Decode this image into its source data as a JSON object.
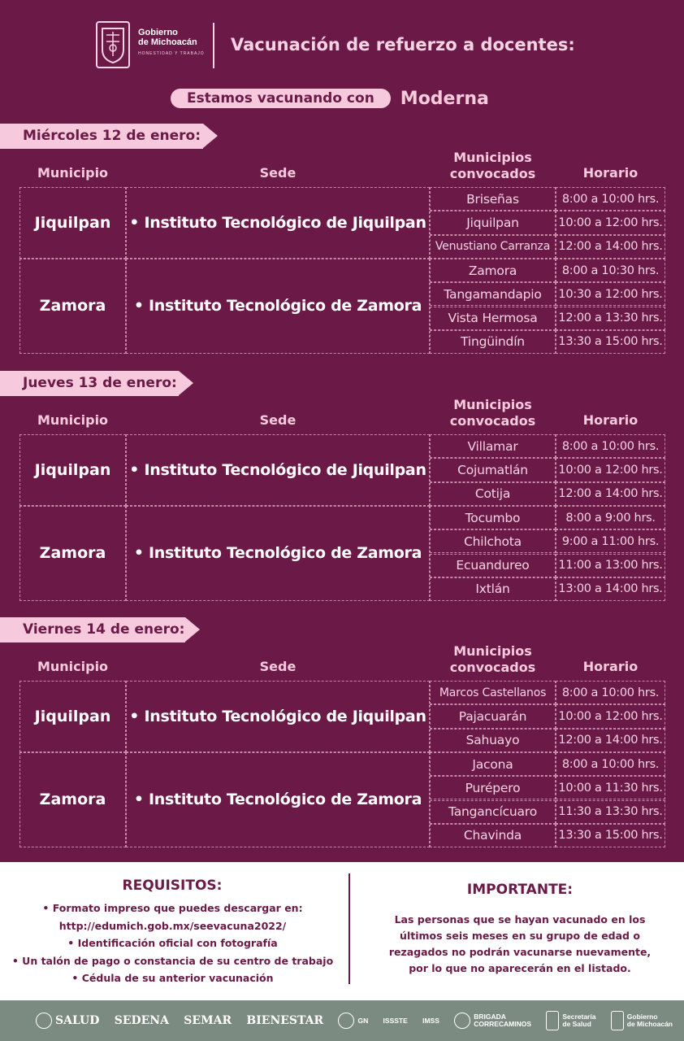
{
  "header": {
    "gov_name_1": "Gobierno",
    "gov_name_2": "de Michoacán",
    "gov_motto": "HONESTIDAD Y TRABAJO",
    "title": "Vacunación de refuerzo a docentes:"
  },
  "vaccine": {
    "label": "Estamos vacunando con",
    "name": "Moderna"
  },
  "columns": {
    "municipio": "Municipio",
    "sede": "Sede",
    "convocados_1": "Municipios",
    "convocados_2": "convocados",
    "horario": "Horario"
  },
  "days": [
    {
      "label": "Miércoles 12 de enero:",
      "groups": [
        {
          "city": "Jiquilpan",
          "sede": "• Instituto Tecnológico de Jiquilpan",
          "rows": [
            {
              "municipio": "Briseñas",
              "horario": "8:00 a 10:00 hrs."
            },
            {
              "municipio": "Jiquilpan",
              "horario": "10:00 a 12:00 hrs."
            },
            {
              "municipio": "Venustiano Carranza",
              "horario": "12:00 a 14:00 hrs."
            }
          ]
        },
        {
          "city": "Zamora",
          "sede": "• Instituto Tecnológico de Zamora",
          "rows": [
            {
              "municipio": "Zamora",
              "horario": "8:00 a 10:30 hrs."
            },
            {
              "municipio": "Tangamandapio",
              "horario": "10:30 a 12:00 hrs."
            },
            {
              "municipio": "Vista Hermosa",
              "horario": "12:00 a 13:30 hrs."
            },
            {
              "municipio": "Tingüindín",
              "horario": "13:30 a 15:00 hrs."
            }
          ]
        }
      ]
    },
    {
      "label": "Jueves 13 de enero:",
      "groups": [
        {
          "city": "Jiquilpan",
          "sede": "• Instituto Tecnológico de Jiquilpan",
          "rows": [
            {
              "municipio": "Villamar",
              "horario": "8:00 a 10:00 hrs."
            },
            {
              "municipio": "Cojumatlán",
              "horario": "10:00 a 12:00 hrs."
            },
            {
              "municipio": "Cotija",
              "horario": "12:00 a 14:00 hrs."
            }
          ]
        },
        {
          "city": "Zamora",
          "sede": "• Instituto Tecnológico de Zamora",
          "rows": [
            {
              "municipio": "Tocumbo",
              "horario": "8:00 a 9:00 hrs."
            },
            {
              "municipio": "Chilchota",
              "horario": "9:00 a 11:00 hrs."
            },
            {
              "municipio": "Ecuandureo",
              "horario": "11:00 a 13:00 hrs."
            },
            {
              "municipio": "Ixtlán",
              "horario": "13:00 a 14:00 hrs."
            }
          ]
        }
      ]
    },
    {
      "label": "Viernes 14 de enero:",
      "groups": [
        {
          "city": "Jiquilpan",
          "sede": "• Instituto Tecnológico de Jiquilpan",
          "rows": [
            {
              "municipio": "Marcos Castellanos",
              "horario": "8:00 a 10:00 hrs."
            },
            {
              "municipio": "Pajacuarán",
              "horario": "10:00 a 12:00 hrs."
            },
            {
              "municipio": "Sahuayo",
              "horario": "12:00 a 14:00 hrs."
            }
          ]
        },
        {
          "city": "Zamora",
          "sede": "• Instituto Tecnológico de Zamora",
          "rows": [
            {
              "municipio": "Jacona",
              "horario": "8:00 a 10:00 hrs."
            },
            {
              "municipio": "Purépero",
              "horario": "10:00 a 11:30 hrs."
            },
            {
              "municipio": "Tangancícuaro",
              "horario": "11:30 a 13:30 hrs."
            },
            {
              "municipio": "Chavinda",
              "horario": "13:30 a 15:00 hrs."
            }
          ]
        }
      ]
    }
  ],
  "requisitos": {
    "title": "REQUISITOS:",
    "items": [
      "• Formato impreso que puedes descargar en:",
      "http://edumich.gob.mx/seevacuna2022/",
      "• Identificación oficial con fotografía",
      "• Un talón de pago o constancia de su centro de trabajo",
      "• Cédula de su anterior vacunación"
    ]
  },
  "importante": {
    "title": "IMPORTANTE:",
    "lines": [
      "Las personas que se hayan vacunado en los",
      "últimos seis meses en su grupo de edad o",
      "rezagados no podrán vacunarse nuevamente,",
      "por lo que no aparecerán en el listado."
    ]
  },
  "logos": {
    "salud": "SALUD",
    "sedena": "SEDENA",
    "semar": "SEMAR",
    "bienestar": "BIENESTAR",
    "gn": "GN",
    "issste": "ISSSTE",
    "imss": "IMSS",
    "brigada_1": "BRIGADA",
    "brigada_2": "CORRECAMINOS",
    "secretaria_1": "Secretaría",
    "secretaria_2": "de Salud",
    "gob_1": "Gobierno",
    "gob_2": "de Michoacán"
  },
  "colors": {
    "background": "#6b1a47",
    "accent_pink": "#f6c9dc",
    "strip_gray": "#7c8b82"
  }
}
